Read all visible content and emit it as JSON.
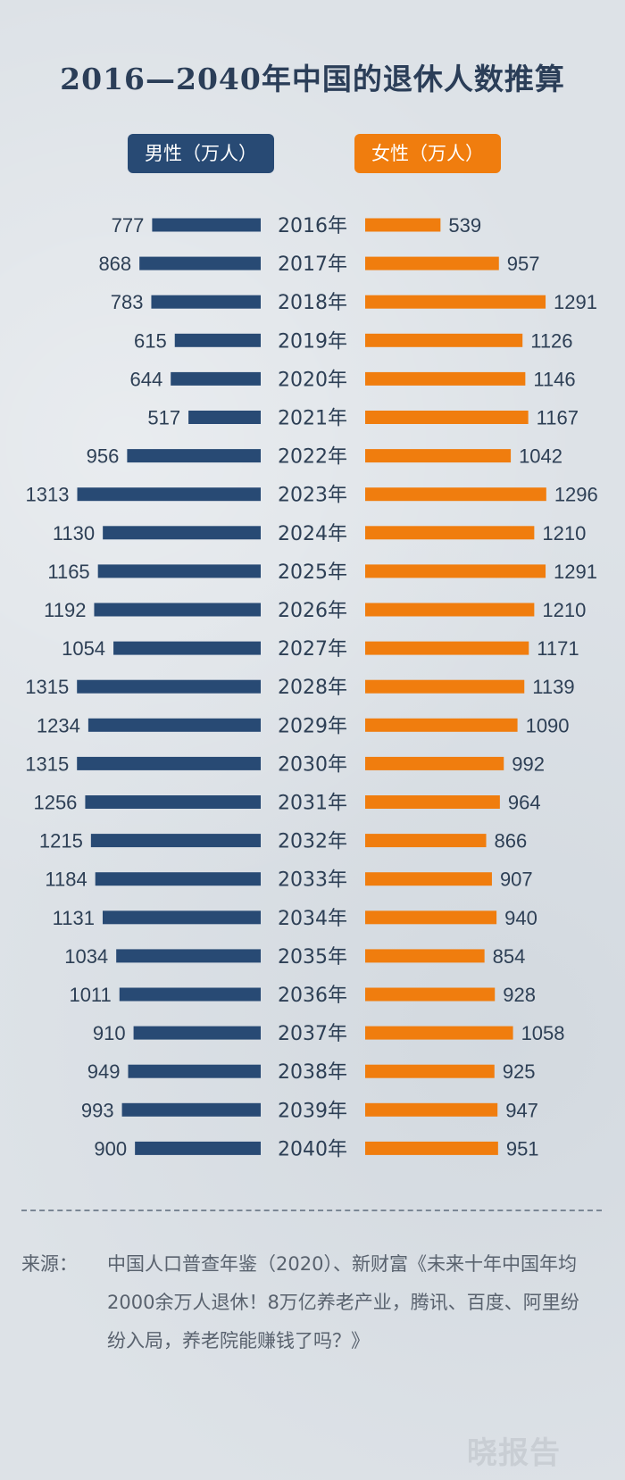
{
  "title": "2016—2040年中国的退休人数推算",
  "chart_data": {
    "type": "bar",
    "orientation": "horizontal-butterfly",
    "categories": [
      "2016年",
      "2017年",
      "2018年",
      "2019年",
      "2020年",
      "2021年",
      "2022年",
      "2023年",
      "2024年",
      "2025年",
      "2026年",
      "2027年",
      "2028年",
      "2029年",
      "2030年",
      "2031年",
      "2032年",
      "2033年",
      "2034年",
      "2035年",
      "2036年",
      "2037年",
      "2038年",
      "2039年",
      "2040年"
    ],
    "series": [
      {
        "name": "男性（万人）",
        "color": "#284a74",
        "side": "left",
        "values": [
          777,
          868,
          783,
          615,
          644,
          517,
          956,
          1313,
          1130,
          1165,
          1192,
          1054,
          1315,
          1234,
          1315,
          1256,
          1215,
          1184,
          1131,
          1034,
          1011,
          910,
          949,
          993,
          900
        ]
      },
      {
        "name": "女性（万人）",
        "color": "#f07d0e",
        "side": "right",
        "values": [
          539,
          957,
          1291,
          1126,
          1146,
          1167,
          1042,
          1296,
          1210,
          1291,
          1210,
          1171,
          1139,
          1090,
          992,
          964,
          866,
          907,
          940,
          854,
          928,
          1058,
          925,
          947,
          951
        ]
      }
    ],
    "legend_position": "top"
  },
  "source": {
    "label": "来源：",
    "text": "中国人口普查年鉴（2020）、新财富《未来十年中国年均2000余万人退休！8万亿养老产业，腾讯、百度、阿里纷纷入局，养老院能赚钱了吗？》"
  },
  "logo": "晓报告"
}
